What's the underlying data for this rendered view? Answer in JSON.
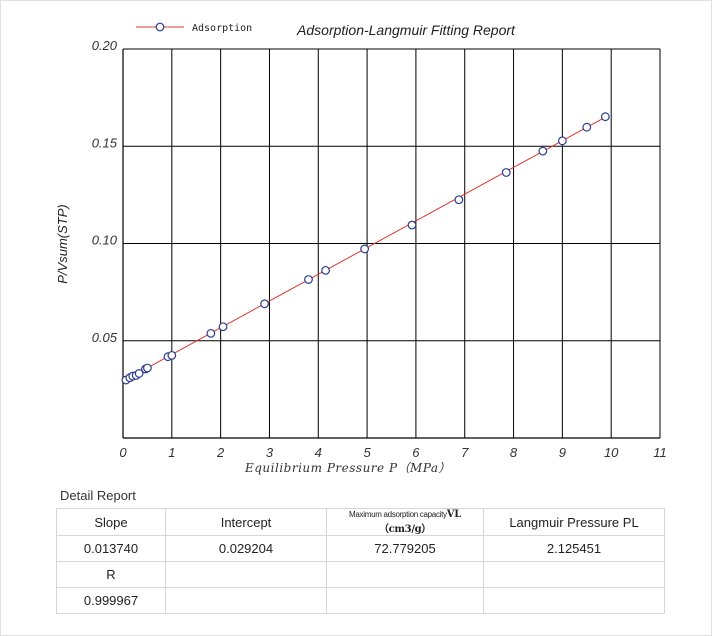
{
  "chart_data": {
    "type": "line",
    "title": "Adsorption-Langmuir Fitting Report",
    "legend": {
      "entries": [
        "Adsorption"
      ],
      "placement": "top-left"
    },
    "xlabel": "Equilibrium Pressure P（MPa）",
    "ylabel": "P/Vsum(STP)",
    "xlim": [
      0,
      11
    ],
    "ylim": [
      0,
      0.2
    ],
    "xticks": [
      "0",
      "1",
      "2",
      "3",
      "4",
      "5",
      "6",
      "7",
      "8",
      "9",
      "10",
      "11"
    ],
    "yticks": [
      "0.05",
      "0.10",
      "0.15",
      "0.20"
    ],
    "grid": true,
    "colors": {
      "fit_line": "#e0332e",
      "marker_edge": "#2b3a8f",
      "marker_fill": "#ffffff",
      "grid": "#000000"
    },
    "series": [
      {
        "name": "Adsorption",
        "x": [
          0.06,
          0.14,
          0.2,
          0.27,
          0.33,
          0.46,
          0.5,
          0.92,
          1.0,
          1.8,
          2.05,
          2.9,
          3.8,
          4.15,
          4.95,
          5.92,
          6.88,
          7.85,
          8.6,
          9.0,
          9.5,
          9.88
        ],
        "y": [
          0.0298,
          0.031,
          0.0318,
          0.0322,
          0.0332,
          0.0355,
          0.036,
          0.0418,
          0.0425,
          0.0538,
          0.0572,
          0.069,
          0.0815,
          0.0862,
          0.0972,
          0.1095,
          0.1225,
          0.1365,
          0.1475,
          0.1528,
          0.1598,
          0.1652
        ]
      }
    ],
    "fit": {
      "slope": 0.01374,
      "intercept": 0.029204
    }
  },
  "report": {
    "title": "Detail Report",
    "headers": {
      "slope": "Slope",
      "intercept": "Intercept",
      "vl_small": "Maximum adsorption capacity",
      "vl_big": "VL（cm3/g）",
      "pl": "Langmuir Pressure PL"
    },
    "values": {
      "slope": "0.013740",
      "intercept": "0.029204",
      "vl": "72.779205",
      "pl": "2.125451"
    },
    "r_label": "R",
    "r_value": "0.999967"
  }
}
